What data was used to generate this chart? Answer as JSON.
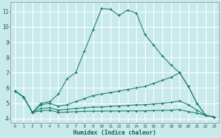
{
  "xlabel": "Humidex (Indice chaleur)",
  "bg_color": "#c8eaea",
  "grid_color": "#ffffff",
  "line_color": "#1a7a6e",
  "xlim": [
    -0.5,
    23.5
  ],
  "ylim": [
    3.7,
    11.6
  ],
  "yticks": [
    4,
    5,
    6,
    7,
    8,
    9,
    10,
    11
  ],
  "xticks": [
    0,
    1,
    2,
    3,
    4,
    5,
    6,
    7,
    8,
    9,
    10,
    11,
    12,
    13,
    14,
    15,
    16,
    17,
    18,
    19,
    20,
    21,
    22,
    23
  ],
  "curve1_x": [
    0,
    1,
    2,
    3,
    4,
    5,
    6,
    7,
    8,
    9,
    10,
    11,
    12,
    13,
    14,
    15,
    16,
    17,
    18,
    19,
    20,
    21,
    22,
    23
  ],
  "curve1_y": [
    5.8,
    5.4,
    4.4,
    5.0,
    5.1,
    5.6,
    6.6,
    7.0,
    8.4,
    9.8,
    11.2,
    11.15,
    10.75,
    11.1,
    10.9,
    9.5,
    8.8,
    8.1,
    7.5,
    7.0,
    6.1,
    5.0,
    4.2,
    4.1
  ],
  "curve2_x": [
    0,
    1,
    2,
    3,
    4,
    5,
    6,
    7,
    8,
    9,
    10,
    11,
    12,
    13,
    14,
    15,
    16,
    17,
    18,
    19,
    20,
    21,
    22,
    23
  ],
  "curve2_y": [
    5.8,
    5.4,
    4.4,
    4.9,
    5.0,
    4.8,
    4.9,
    5.1,
    5.3,
    5.5,
    5.6,
    5.7,
    5.8,
    5.9,
    6.0,
    6.1,
    6.3,
    6.5,
    6.7,
    7.0,
    6.1,
    5.0,
    4.2,
    4.1
  ],
  "curve3_x": [
    0,
    1,
    2,
    3,
    4,
    5,
    6,
    7,
    8,
    9,
    10,
    11,
    12,
    13,
    14,
    15,
    16,
    17,
    18,
    19,
    20,
    21,
    22,
    23
  ],
  "curve3_y": [
    5.8,
    5.4,
    4.4,
    4.65,
    4.7,
    4.55,
    4.6,
    4.65,
    4.7,
    4.75,
    4.75,
    4.8,
    4.82,
    4.85,
    4.9,
    4.9,
    4.95,
    5.0,
    5.05,
    5.15,
    4.9,
    4.55,
    4.2,
    4.1
  ],
  "curve4_x": [
    0,
    1,
    2,
    3,
    4,
    5,
    6,
    7,
    8,
    9,
    10,
    11,
    12,
    13,
    14,
    15,
    16,
    17,
    18,
    19,
    20,
    21,
    22,
    23
  ],
  "curve4_y": [
    5.8,
    5.4,
    4.4,
    4.5,
    4.55,
    4.4,
    4.42,
    4.45,
    4.47,
    4.48,
    4.48,
    4.49,
    4.49,
    4.5,
    4.5,
    4.5,
    4.52,
    4.53,
    4.55,
    4.58,
    4.45,
    4.35,
    4.2,
    4.1
  ]
}
